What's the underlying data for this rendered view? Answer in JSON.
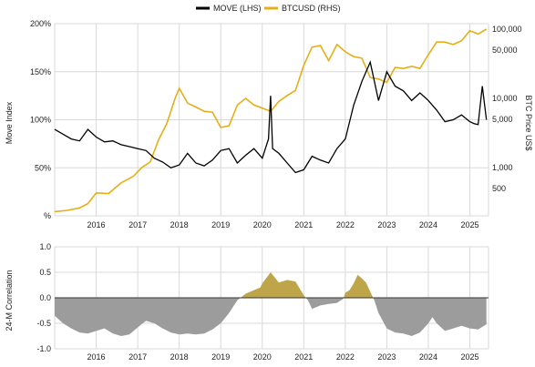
{
  "colors": {
    "move": "#000000",
    "btc": "#e6ae17",
    "corr_pos": "#bfa54a",
    "corr_neg": "#9c9c9c",
    "grid": "#d9d9d9"
  },
  "chart_data": [
    {
      "type": "line",
      "legend": {
        "placement": "top-center",
        "entries": [
          "MOVE (LHS)",
          "BTCUSD (RHS)"
        ]
      },
      "x_ticks": [
        "2016",
        "2017",
        "2018",
        "2019",
        "2020",
        "2021",
        "2022",
        "2023",
        "2024",
        "2025"
      ],
      "xlim": [
        2015.0,
        2025.45
      ],
      "ylabel_left": "Move Index",
      "ylabel_right": "BTC Price US$",
      "yticks_left": [
        "%",
        "50%",
        "100%",
        "150%",
        "200%"
      ],
      "ylim_left": [
        0,
        200
      ],
      "yticks_right": [
        "500",
        "1,000",
        "5,000",
        "10,000",
        "50,000",
        "100,000"
      ],
      "ylim_right_log": [
        200,
        120000
      ],
      "series": [
        {
          "name": "MOVE (LHS)",
          "axis": "left",
          "x": [
            2015.0,
            2015.2,
            2015.4,
            2015.6,
            2015.8,
            2016.0,
            2016.2,
            2016.4,
            2016.6,
            2016.8,
            2017.0,
            2017.2,
            2017.4,
            2017.6,
            2017.8,
            2018.0,
            2018.2,
            2018.4,
            2018.6,
            2018.8,
            2019.0,
            2019.2,
            2019.4,
            2019.6,
            2019.8,
            2020.0,
            2020.15,
            2020.2,
            2020.25,
            2020.4,
            2020.6,
            2020.8,
            2021.0,
            2021.2,
            2021.4,
            2021.6,
            2021.8,
            2022.0,
            2022.2,
            2022.4,
            2022.6,
            2022.8,
            2023.0,
            2023.2,
            2023.4,
            2023.6,
            2023.8,
            2024.0,
            2024.2,
            2024.4,
            2024.6,
            2024.8,
            2025.0,
            2025.1,
            2025.2,
            2025.3,
            2025.4
          ],
          "values": [
            90,
            85,
            80,
            78,
            90,
            82,
            77,
            78,
            74,
            72,
            70,
            68,
            60,
            56,
            50,
            53,
            65,
            55,
            52,
            58,
            68,
            70,
            55,
            63,
            70,
            60,
            80,
            125,
            70,
            65,
            55,
            45,
            48,
            62,
            58,
            55,
            70,
            80,
            115,
            140,
            160,
            120,
            150,
            135,
            130,
            120,
            128,
            120,
            110,
            98,
            100,
            105,
            98,
            96,
            95,
            135,
            100
          ]
        },
        {
          "name": "BTCUSD (RHS)",
          "axis": "right",
          "x": [
            2015.0,
            2015.3,
            2015.6,
            2015.8,
            2016.0,
            2016.3,
            2016.6,
            2016.9,
            2017.1,
            2017.3,
            2017.5,
            2017.7,
            2017.9,
            2018.0,
            2018.2,
            2018.4,
            2018.6,
            2018.8,
            2019.0,
            2019.2,
            2019.4,
            2019.6,
            2019.8,
            2020.0,
            2020.2,
            2020.4,
            2020.6,
            2020.8,
            2021.0,
            2021.2,
            2021.4,
            2021.6,
            2021.8,
            2022.0,
            2022.2,
            2022.4,
            2022.6,
            2022.8,
            2023.0,
            2023.2,
            2023.4,
            2023.6,
            2023.8,
            2024.0,
            2024.2,
            2024.4,
            2024.6,
            2024.8,
            2025.0,
            2025.2,
            2025.4
          ],
          "values": [
            230,
            240,
            260,
            300,
            430,
            420,
            600,
            750,
            1000,
            1200,
            2500,
            4300,
            10000,
            14000,
            8500,
            7500,
            6500,
            6300,
            3800,
            4000,
            8000,
            10000,
            8000,
            7200,
            6500,
            9000,
            11000,
            13000,
            30000,
            55000,
            58000,
            35000,
            60000,
            47000,
            40000,
            38000,
            20000,
            19000,
            17000,
            28000,
            27000,
            29000,
            27000,
            43000,
            65000,
            65000,
            60000,
            68000,
            95000,
            85000,
            100000
          ]
        }
      ]
    },
    {
      "type": "area",
      "ylabel": "24-M Correlation",
      "yticks": [
        "-1.0",
        "-0.5",
        "0.0",
        "0.5",
        "1.0"
      ],
      "ylim": [
        -1.0,
        1.0
      ],
      "x_ticks": [
        "2016",
        "2017",
        "2018",
        "2019",
        "2020",
        "2021",
        "2022",
        "2023",
        "2024",
        "2025"
      ],
      "xlim": [
        2015.0,
        2025.45
      ],
      "series": [
        {
          "x": [
            2015.0,
            2015.2,
            2015.4,
            2015.6,
            2015.8,
            2016.0,
            2016.2,
            2016.4,
            2016.6,
            2016.8,
            2017.0,
            2017.2,
            2017.4,
            2017.6,
            2017.8,
            2018.0,
            2018.2,
            2018.4,
            2018.6,
            2018.8,
            2019.0,
            2019.2,
            2019.4,
            2019.6,
            2019.8,
            2019.95,
            2020.0,
            2020.2,
            2020.4,
            2020.6,
            2020.8,
            2021.0,
            2021.1,
            2021.2,
            2021.4,
            2021.6,
            2021.8,
            2021.95,
            2022.0,
            2022.1,
            2022.2,
            2022.3,
            2022.4,
            2022.5,
            2022.6,
            2022.7,
            2022.8,
            2023.0,
            2023.2,
            2023.4,
            2023.6,
            2023.8,
            2024.0,
            2024.1,
            2024.2,
            2024.4,
            2024.6,
            2024.8,
            2025.0,
            2025.2,
            2025.4
          ],
          "values": [
            -0.35,
            -0.5,
            -0.6,
            -0.68,
            -0.7,
            -0.65,
            -0.6,
            -0.7,
            -0.75,
            -0.72,
            -0.58,
            -0.45,
            -0.5,
            -0.6,
            -0.68,
            -0.72,
            -0.7,
            -0.72,
            -0.7,
            -0.62,
            -0.5,
            -0.3,
            -0.05,
            0.08,
            0.15,
            0.2,
            0.28,
            0.5,
            0.3,
            0.35,
            0.32,
            0.05,
            -0.05,
            -0.22,
            -0.15,
            -0.12,
            -0.1,
            -0.02,
            0.1,
            0.15,
            0.28,
            0.45,
            0.38,
            0.3,
            0.12,
            -0.05,
            -0.3,
            -0.6,
            -0.68,
            -0.7,
            -0.75,
            -0.68,
            -0.5,
            -0.38,
            -0.5,
            -0.65,
            -0.6,
            -0.55,
            -0.6,
            -0.62,
            -0.52
          ]
        }
      ]
    }
  ]
}
